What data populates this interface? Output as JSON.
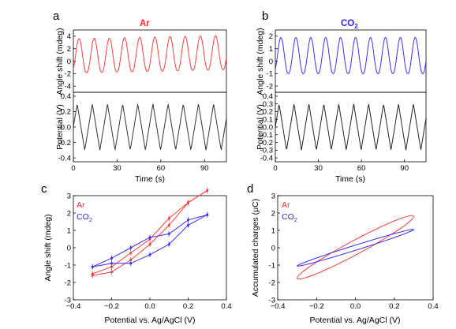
{
  "panels": [
    {
      "letter": "a",
      "header": "Ar",
      "header_color": "#ff2a2a"
    },
    {
      "letter": "b",
      "header": "CO",
      "header_sub": "2",
      "header_color": "#2a1fff"
    },
    {
      "letter": "c"
    },
    {
      "letter": "d"
    }
  ],
  "colors": {
    "ar": "#ff3b3b",
    "co2": "#3a2cff",
    "potential": "#222222"
  },
  "chart_data": [
    {
      "id": "a-top",
      "type": "line",
      "ylabel": "Angle shift (mdeg)",
      "ylabel_color": "#ff2a2a",
      "xlim": [
        0,
        105
      ],
      "ylim": [
        -5,
        5
      ],
      "yticks": [
        4,
        2,
        0,
        -2,
        -4
      ],
      "xticks": [],
      "series": [
        {
          "color": "#ff3b3b",
          "period": 10.4,
          "phase": 1.3,
          "min": -1.9,
          "max": 3.6,
          "drift": 0.005
        }
      ]
    },
    {
      "id": "a-bottom",
      "type": "line",
      "xlabel": "Time (s)",
      "ylabel": "Potential (V)",
      "ylabel_color": "#000000",
      "xlim": [
        0,
        105
      ],
      "ylim": [
        -0.45,
        0.45
      ],
      "xticks": [
        0,
        30,
        60,
        90
      ],
      "yticks": [
        0.4,
        0.2,
        0.0,
        -0.2,
        -0.4
      ],
      "ytick_labels": [
        "0.4",
        "0.2",
        "0.0",
        "-0.2",
        "-0.4"
      ],
      "series": [
        {
          "color": "#333333",
          "period": 10.4,
          "phase": 0,
          "min": -0.3,
          "max": 0.3,
          "start": 0
        }
      ]
    },
    {
      "id": "b-top",
      "type": "line",
      "ylabel": "Angle shift (mdeg)",
      "ylabel_color": "#2a1fff",
      "xlim": [
        0,
        105
      ],
      "ylim": [
        -2.5,
        2.5
      ],
      "yticks": [
        2,
        1,
        0,
        -1,
        -2
      ],
      "xticks": [],
      "series": [
        {
          "color": "#3a2cff",
          "period": 10.4,
          "phase": 1.3,
          "min": -1.0,
          "max": 1.9,
          "drift": 0.0
        }
      ]
    },
    {
      "id": "b-bottom",
      "type": "line",
      "xlabel": "Time (s)",
      "ylabel": "Potential (V)",
      "ylabel_color": "#000000",
      "xlim": [
        0,
        105
      ],
      "ylim": [
        -0.45,
        0.45
      ],
      "xticks": [
        0,
        30,
        60,
        90
      ],
      "yticks": [
        0.4,
        0.3,
        0.2,
        0.1,
        0.0,
        -0.1,
        -0.2,
        -0.3,
        -0.4
      ],
      "ytick_labels": [
        "0.4",
        "0.3",
        "0.2",
        "0.1",
        "0.0",
        "-0.1",
        "-0.2",
        "-0.3",
        "-0.4"
      ],
      "series": [
        {
          "color": "#222222",
          "period": 10.4,
          "phase": 0,
          "min": -0.3,
          "max": 0.3,
          "start": 0
        }
      ]
    },
    {
      "id": "c",
      "type": "line",
      "xlabel": "Potential vs. Ag/AgCl (V)",
      "ylabel": "Angle shift (mdeg)",
      "xlim": [
        -0.4,
        0.4
      ],
      "ylim": [
        -3,
        3
      ],
      "xticks": [
        -0.4,
        -0.2,
        0.0,
        0.2,
        0.4
      ],
      "xtick_labels": [
        "−0.4",
        "−0.2",
        "0.0",
        "0.2",
        "0.4"
      ],
      "yticks": [
        3,
        2,
        1,
        0,
        -1,
        -2,
        -3
      ],
      "legend": [
        "Ar",
        "CO2"
      ],
      "series": [
        {
          "name": "Ar",
          "color": "#ff3b3b",
          "forward": [
            [
              -0.3,
              -1.6
            ],
            [
              -0.2,
              -1.4
            ],
            [
              -0.1,
              -0.7
            ],
            [
              0.0,
              0.2
            ],
            [
              0.1,
              1.3
            ],
            [
              0.2,
              2.6
            ],
            [
              0.3,
              3.3
            ]
          ],
          "backward": [
            [
              0.3,
              3.3
            ],
            [
              0.2,
              2.6
            ],
            [
              0.1,
              1.7
            ],
            [
              0.0,
              0.5
            ],
            [
              -0.1,
              -0.3
            ],
            [
              -0.2,
              -1.1
            ],
            [
              -0.3,
              -1.5
            ]
          ]
        },
        {
          "name": "CO2",
          "color": "#3a2cff",
          "forward": [
            [
              -0.3,
              -1.1
            ],
            [
              -0.2,
              -0.9
            ],
            [
              -0.1,
              -0.9
            ],
            [
              0.0,
              -0.4
            ],
            [
              0.1,
              0.2
            ],
            [
              0.2,
              1.3
            ],
            [
              0.3,
              1.9
            ]
          ],
          "backward": [
            [
              0.3,
              1.9
            ],
            [
              0.2,
              1.6
            ],
            [
              0.1,
              0.8
            ],
            [
              0.0,
              0.6
            ],
            [
              -0.1,
              -0.0
            ],
            [
              -0.2,
              -0.6
            ],
            [
              -0.3,
              -1.1
            ]
          ]
        }
      ]
    },
    {
      "id": "d",
      "type": "line",
      "xlabel": "Potential vs. Ag/AgCl (V)",
      "ylabel": "Accumulated charges (μC)",
      "xlim": [
        -0.4,
        0.4
      ],
      "ylim": [
        -3,
        3
      ],
      "xticks": [
        -0.4,
        -0.2,
        0.0,
        0.2,
        0.4
      ],
      "xtick_labels": [
        "−0.4",
        "−0.2",
        "0.0",
        "0.2",
        "0.4"
      ],
      "yticks": [
        3,
        2,
        1,
        0,
        -1,
        -2,
        -3
      ],
      "legend": [
        "Ar",
        "CO2"
      ],
      "series": [
        {
          "name": "Ar",
          "color": "#ff3b3b",
          "loop": {
            "vmin": -0.3,
            "vmax": 0.3,
            "qmin": -1.75,
            "qmax": 1.8,
            "width": 0.9
          }
        },
        {
          "name": "CO2",
          "color": "#3a2cff",
          "loop": {
            "vmin": -0.3,
            "vmax": 0.3,
            "qmin": -1.05,
            "qmax": 1.05,
            "width": 0.3
          }
        }
      ]
    }
  ]
}
